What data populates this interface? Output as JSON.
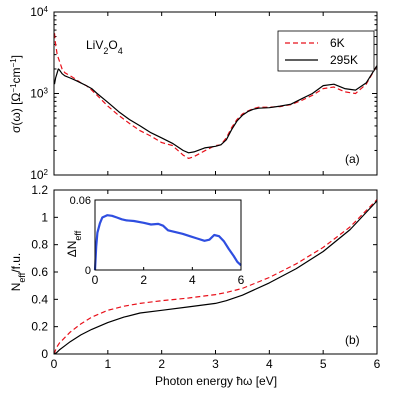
{
  "chart_data": [
    {
      "panel": "top",
      "type": "line",
      "title": "",
      "panel_label": "(a)",
      "annotation": {
        "base": "LiV",
        "sub1": "2",
        "mid": "O",
        "sub2": "4"
      },
      "ylabel": {
        "pre": "σ(ω)  [Ω",
        "sup1": "−1",
        "mid": "cm",
        "sup2": "−1",
        "post": "]"
      },
      "xlim": [
        0,
        6
      ],
      "ylim": [
        100,
        10000
      ],
      "yscale": "log",
      "yticks": [
        {
          "value": 100,
          "base": "10",
          "exp": "2"
        },
        {
          "value": 1000,
          "base": "10",
          "exp": "3"
        },
        {
          "value": 10000,
          "base": "10",
          "exp": "4"
        }
      ],
      "legend_position": "top-right",
      "colors": {
        "6K": "#e8101a",
        "295K": "#000000"
      },
      "series": [
        {
          "name": "6K",
          "style": "dashed",
          "color": "#e8101a",
          "x": [
            0.01,
            0.03,
            0.06,
            0.1,
            0.15,
            0.2,
            0.3,
            0.4,
            0.5,
            0.6,
            0.7,
            0.8,
            1.0,
            1.2,
            1.4,
            1.6,
            1.8,
            2.0,
            2.2,
            2.4,
            2.5,
            2.6,
            2.8,
            3.0,
            3.1,
            3.2,
            3.3,
            3.4,
            3.5,
            3.6,
            3.7,
            3.8,
            4.0,
            4.2,
            4.4,
            4.6,
            4.8,
            5.0,
            5.2,
            5.4,
            5.6,
            5.8,
            6.0
          ],
          "y": [
            5500,
            4000,
            3000,
            2500,
            2000,
            1800,
            1650,
            1500,
            1350,
            1250,
            1100,
            950,
            700,
            540,
            430,
            350,
            300,
            250,
            230,
            175,
            160,
            168,
            198,
            230,
            235,
            285,
            380,
            480,
            560,
            610,
            650,
            680,
            680,
            690,
            730,
            820,
            950,
            1150,
            1200,
            1050,
            1000,
            1300,
            2200
          ]
        },
        {
          "name": "295K",
          "style": "solid",
          "color": "#000000",
          "x": [
            0.01,
            0.03,
            0.06,
            0.08,
            0.1,
            0.15,
            0.2,
            0.3,
            0.4,
            0.5,
            0.6,
            0.7,
            0.8,
            1.0,
            1.2,
            1.4,
            1.6,
            1.8,
            2.0,
            2.2,
            2.4,
            2.5,
            2.6,
            2.8,
            3.0,
            3.1,
            3.2,
            3.3,
            3.4,
            3.5,
            3.6,
            3.7,
            3.8,
            4.0,
            4.2,
            4.4,
            4.6,
            4.8,
            5.0,
            5.2,
            5.4,
            5.6,
            5.8,
            6.0
          ],
          "y": [
            1300,
            1550,
            1800,
            2000,
            1950,
            1750,
            1650,
            1550,
            1450,
            1350,
            1250,
            1150,
            1000,
            780,
            600,
            480,
            400,
            330,
            285,
            245,
            200,
            187,
            192,
            215,
            225,
            235,
            270,
            360,
            460,
            540,
            600,
            640,
            660,
            670,
            700,
            740,
            860,
            1000,
            1250,
            1300,
            1150,
            1100,
            1350,
            2200
          ]
        }
      ]
    },
    {
      "panel": "bottom",
      "type": "line",
      "title": "",
      "panel_label": "(b)",
      "xlabel": "Photon energy ħω [eV]",
      "ylabel": {
        "pre": "N",
        "sub": "eff",
        "post": "/f.u."
      },
      "xlim": [
        0,
        6
      ],
      "ylim": [
        0,
        1.2
      ],
      "xticks": [
        "0",
        "1",
        "2",
        "3",
        "4",
        "5",
        "6"
      ],
      "yticks": [
        "0",
        "0.2",
        "0.4",
        "0.6",
        "0.8",
        "1",
        "1.2"
      ],
      "series": [
        {
          "name": "6K",
          "style": "dashed",
          "color": "#e8101a",
          "x": [
            0,
            0.05,
            0.1,
            0.2,
            0.3,
            0.5,
            0.7,
            1.0,
            1.3,
            1.6,
            2.0,
            2.5,
            3.0,
            3.2,
            3.5,
            4.0,
            4.5,
            5.0,
            5.5,
            6.0
          ],
          "y": [
            0,
            0.05,
            0.08,
            0.12,
            0.16,
            0.22,
            0.27,
            0.32,
            0.35,
            0.37,
            0.39,
            0.41,
            0.435,
            0.45,
            0.48,
            0.56,
            0.66,
            0.78,
            0.93,
            1.13
          ]
        },
        {
          "name": "295K",
          "style": "solid",
          "color": "#000000",
          "x": [
            0,
            0.05,
            0.1,
            0.2,
            0.3,
            0.5,
            0.7,
            1.0,
            1.3,
            1.6,
            2.0,
            2.5,
            3.0,
            3.2,
            3.5,
            4.0,
            4.5,
            5.0,
            5.5,
            6.0
          ],
          "y": [
            0,
            0.01,
            0.03,
            0.06,
            0.09,
            0.14,
            0.18,
            0.23,
            0.27,
            0.3,
            0.32,
            0.345,
            0.37,
            0.39,
            0.43,
            0.52,
            0.625,
            0.75,
            0.91,
            1.12
          ]
        }
      ]
    },
    {
      "panel": "inset",
      "type": "line",
      "title": "",
      "ylabel": {
        "pre": "ΔN",
        "sub": "eff"
      },
      "xlim": [
        0,
        6
      ],
      "ylim": [
        0,
        0.06
      ],
      "xticks": [
        "0",
        "2",
        "4",
        "6"
      ],
      "yticks": [
        "0",
        "0.06"
      ],
      "series": [
        {
          "name": "ΔN_eff",
          "color": "#2f4ee0",
          "x": [
            0,
            0.05,
            0.1,
            0.2,
            0.3,
            0.5,
            0.7,
            0.9,
            1.1,
            1.3,
            1.6,
            2.0,
            2.3,
            2.6,
            2.8,
            3.0,
            3.3,
            3.6,
            3.9,
            4.2,
            4.5,
            4.7,
            4.9,
            5.1,
            5.3,
            5.5,
            5.7,
            5.85,
            6.0
          ],
          "y": [
            0.0,
            0.02,
            0.032,
            0.04,
            0.045,
            0.047,
            0.0465,
            0.045,
            0.0435,
            0.0425,
            0.042,
            0.0405,
            0.039,
            0.0395,
            0.038,
            0.034,
            0.0325,
            0.031,
            0.029,
            0.027,
            0.025,
            0.026,
            0.03,
            0.029,
            0.0245,
            0.018,
            0.012,
            0.007,
            0.004
          ]
        }
      ]
    }
  ]
}
